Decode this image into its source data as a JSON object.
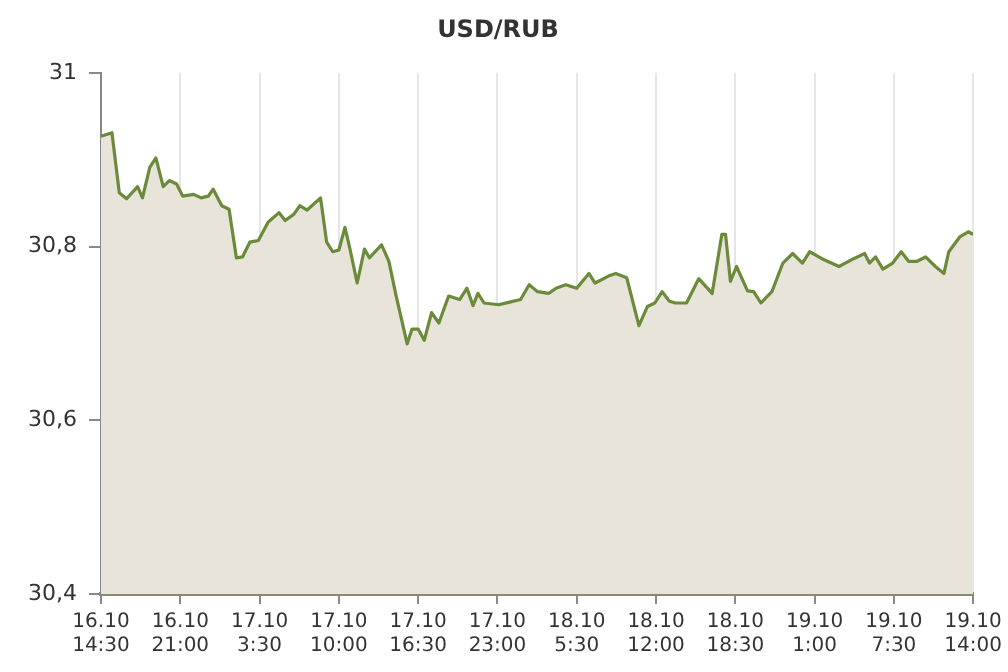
{
  "chart_data": {
    "type": "area",
    "title": "USD/RUB",
    "grid": "x",
    "marker": "none",
    "line_style": "solid",
    "xlim": [
      "--10-16T14:30",
      "--10-19T14:00"
    ],
    "ylim": [
      30.4,
      31
    ],
    "xticks": [
      {
        "value": "--10-16T14:30",
        "label": "16.10 14:30"
      },
      {
        "value": "--10-16T21:00",
        "label": "16.10 21:00"
      },
      {
        "value": "--10-17T03:30",
        "label": "17.10 3:30"
      },
      {
        "value": "--10-17T10:00",
        "label": "17.10 10:00"
      },
      {
        "value": "--10-17T16:30",
        "label": "17.10 16:30"
      },
      {
        "value": "--10-17T23:00",
        "label": "17.10 23:00"
      },
      {
        "value": "--10-18T05:30",
        "label": "18.10 5:30"
      },
      {
        "value": "--10-18T12:00",
        "label": "18.10 12:00"
      },
      {
        "value": "--10-18T18:30",
        "label": "18.10 18:30"
      },
      {
        "value": "--10-19T01:00",
        "label": "19.10 1:00"
      },
      {
        "value": "--10-19T07:30",
        "label": "19.10 7:30"
      },
      {
        "value": "--10-19T14:00",
        "label": "19.10 14:00"
      }
    ],
    "yticks": [
      {
        "value": 30.4,
        "label": "30,4"
      },
      {
        "value": 30.6,
        "label": "30,6"
      },
      {
        "value": 30.8,
        "label": "30,8"
      },
      {
        "value": 31,
        "label": "31"
      }
    ],
    "x": [
      "--10-16T14:30",
      "--10-16T15:24",
      "--10-16T16:00",
      "--10-16T16:36",
      "--10-16T17:30",
      "--10-16T17:54",
      "--10-16T18:30",
      "--10-16T19:00",
      "--10-16T19:36",
      "--10-16T20:06",
      "--10-16T20:42",
      "--10-16T21:12",
      "--10-16T22:06",
      "--10-16T22:42",
      "--10-16T23:18",
      "--10-16T23:42",
      "--10-17T00:24",
      "--10-17T01:00",
      "--10-17T01:36",
      "--10-17T02:06",
      "--10-17T02:42",
      "--10-17T03:24",
      "--10-17T04:12",
      "--10-17T05:06",
      "--10-17T05:36",
      "--10-17T06:18",
      "--10-17T06:48",
      "--10-17T07:24",
      "--10-17T08:30",
      "--10-17T09:00",
      "--10-17T09:30",
      "--10-17T10:00",
      "--10-17T10:30",
      "--10-17T10:54",
      "--10-17T11:30",
      "--10-17T12:06",
      "--10-17T12:30",
      "--10-17T13:30",
      "--10-17T14:06",
      "--10-17T14:42",
      "--10-17T15:36",
      "--10-17T16:00",
      "--10-17T16:30",
      "--10-17T17:00",
      "--10-17T17:36",
      "--10-17T18:12",
      "--10-17T19:00",
      "--10-17T19:54",
      "--10-17T20:30",
      "--10-17T21:00",
      "--10-17T21:24",
      "--10-17T21:54",
      "--10-17T23:06",
      "--10-18T00:00",
      "--10-18T00:54",
      "--10-18T01:36",
      "--10-18T02:18",
      "--10-18T03:12",
      "--10-18T03:48",
      "--10-18T04:36",
      "--10-18T05:30",
      "--10-18T06:30",
      "--10-18T07:00",
      "--10-18T08:06",
      "--10-18T08:42",
      "--10-18T09:36",
      "--10-18T10:36",
      "--10-18T11:18",
      "--10-18T11:54",
      "--10-18T12:30",
      "--10-18T13:06",
      "--10-18T13:36",
      "--10-18T14:30",
      "--10-18T15:30",
      "--10-18T16:36",
      "--10-18T17:24",
      "--10-18T17:42",
      "--10-18T18:06",
      "--10-18T18:36",
      "--10-18T19:30",
      "--10-18T20:00",
      "--10-18T20:36",
      "--10-18T21:30",
      "--10-18T22:24",
      "--10-18T23:12",
      "--10-19T00:00",
      "--10-19T00:36",
      "--10-19T01:36",
      "--10-19T03:00",
      "--10-19T04:12",
      "--10-19T05:06",
      "--10-19T05:30",
      "--10-19T06:00",
      "--10-19T06:36",
      "--10-19T07:24",
      "--10-19T08:06",
      "--10-19T08:42",
      "--10-19T09:24",
      "--10-19T10:06",
      "--10-19T10:54",
      "--10-19T11:36",
      "--10-19T12:00",
      "--10-19T12:54",
      "--10-19T13:36",
      "--10-19T14:00"
    ],
    "series": [
      {
        "color": "#6b8a3a",
        "values": [
          30.927,
          30.931,
          30.862,
          30.855,
          30.869,
          30.856,
          30.891,
          30.902,
          30.869,
          30.876,
          30.872,
          30.858,
          30.86,
          30.856,
          30.858,
          30.866,
          30.847,
          30.843,
          30.787,
          30.788,
          30.805,
          30.807,
          30.828,
          30.839,
          30.83,
          30.837,
          30.847,
          30.842,
          30.856,
          30.805,
          30.794,
          30.796,
          30.822,
          30.798,
          30.758,
          30.797,
          30.787,
          30.802,
          30.783,
          30.743,
          30.688,
          30.705,
          30.705,
          30.692,
          30.724,
          30.712,
          30.743,
          30.739,
          30.752,
          30.732,
          30.746,
          30.735,
          30.733,
          30.736,
          30.739,
          30.756,
          30.748,
          30.746,
          30.752,
          30.756,
          30.752,
          30.769,
          30.758,
          30.766,
          30.769,
          30.764,
          30.709,
          30.731,
          30.735,
          30.748,
          30.737,
          30.735,
          30.735,
          30.763,
          30.746,
          30.814,
          30.814,
          30.76,
          30.777,
          30.749,
          30.748,
          30.735,
          30.748,
          30.781,
          30.792,
          30.781,
          30.794,
          30.786,
          30.777,
          30.786,
          30.792,
          30.781,
          30.788,
          30.774,
          30.781,
          30.794,
          30.783,
          30.783,
          30.788,
          30.777,
          30.769,
          30.794,
          30.811,
          30.817,
          30.814
        ]
      }
    ]
  }
}
